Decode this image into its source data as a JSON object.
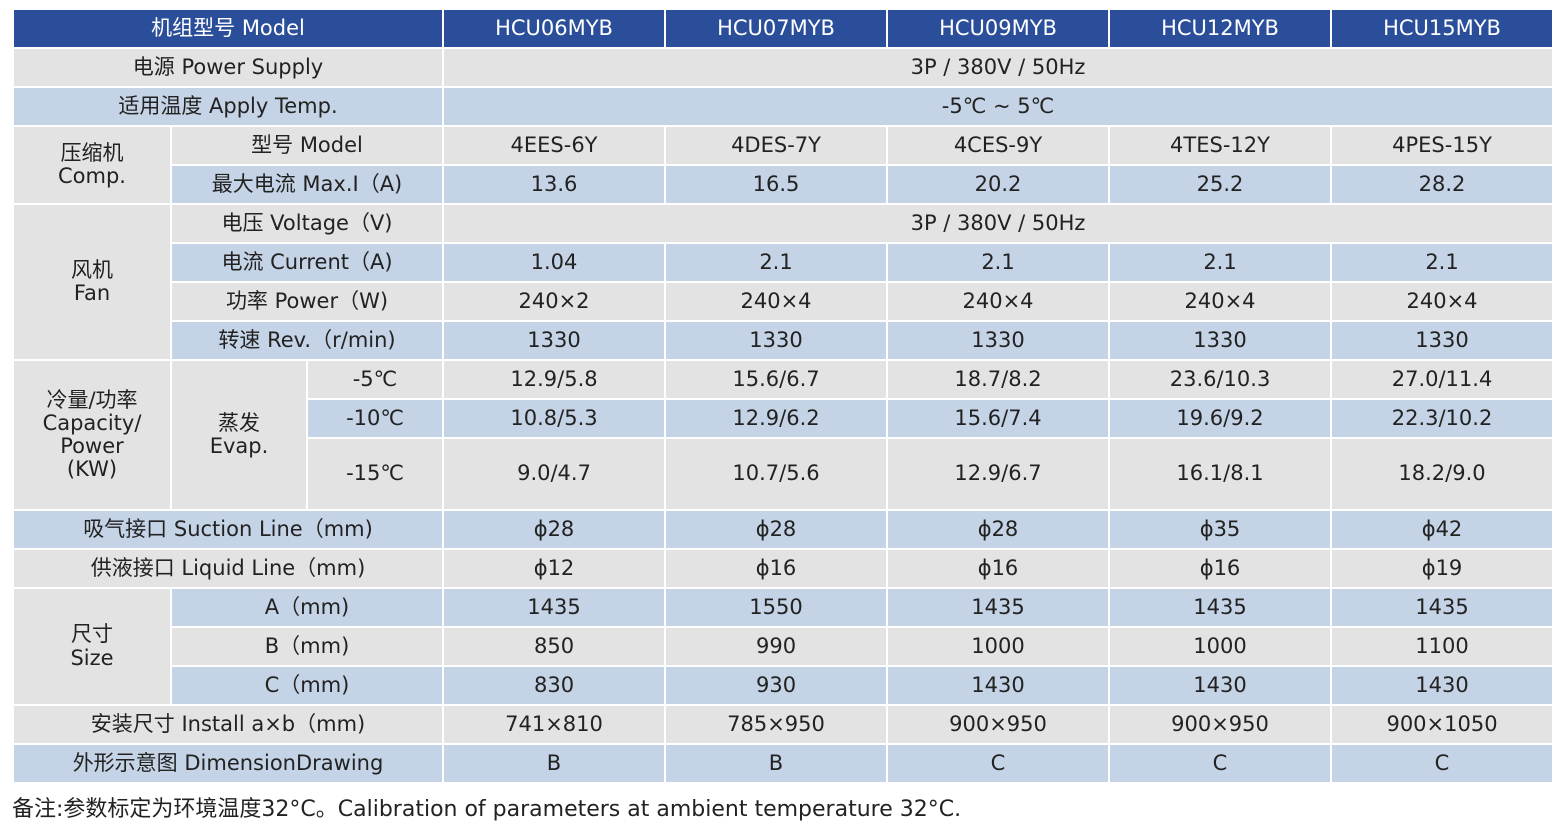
{
  "header": {
    "label": "机组型号 Model",
    "models": [
      "HCU06MYB",
      "HCU07MYB",
      "HCU09MYB",
      "HCU12MYB",
      "HCU15MYB"
    ]
  },
  "power_supply": {
    "label": "电源 Power Supply",
    "value": "3P / 380V / 50Hz"
  },
  "apply_temp": {
    "label": "适用温度 Apply Temp.",
    "value": "-5℃ ~ 5℃"
  },
  "comp": {
    "group_label": [
      "压缩机",
      "Comp."
    ],
    "model": {
      "label": "型号 Model",
      "values": [
        "4EES-6Y",
        "4DES-7Y",
        "4CES-9Y",
        "4TES-12Y",
        "4PES-15Y"
      ]
    },
    "max_i": {
      "label": "最大电流 Max.I（A)",
      "values": [
        "13.6",
        "16.5",
        "20.2",
        "25.2",
        "28.2"
      ]
    }
  },
  "fan": {
    "group_label": [
      "风机",
      "Fan"
    ],
    "voltage": {
      "label": "电压 Voltage（V)",
      "value": "3P / 380V / 50Hz"
    },
    "current": {
      "label": "电流 Current（A)",
      "values": [
        "1.04",
        "2.1",
        "2.1",
        "2.1",
        "2.1"
      ]
    },
    "power": {
      "label": "功率 Power（W)",
      "values": [
        "240×2",
        "240×4",
        "240×4",
        "240×4",
        "240×4"
      ]
    },
    "rev": {
      "label": "转速 Rev.（r/min)",
      "values": [
        "1330",
        "1330",
        "1330",
        "1330",
        "1330"
      ]
    }
  },
  "capacity": {
    "group_label": [
      "冷量/功率",
      "Capacity/",
      "Power",
      "(KW)"
    ],
    "evap_label": [
      "蒸发",
      "Evap."
    ],
    "rows": [
      {
        "temp": "-5℃",
        "values": [
          "12.9/5.8",
          "15.6/6.7",
          "18.7/8.2",
          "23.6/10.3",
          "27.0/11.4"
        ]
      },
      {
        "temp": "-10℃",
        "values": [
          "10.8/5.3",
          "12.9/6.2",
          "15.6/7.4",
          "19.6/9.2",
          "22.3/10.2"
        ]
      },
      {
        "temp": "-15℃",
        "values": [
          "9.0/4.7",
          "10.7/5.6",
          "12.9/6.7",
          "16.1/8.1",
          "18.2/9.0"
        ]
      }
    ]
  },
  "suction": {
    "label": "吸气接口 Suction Line（mm)",
    "values": [
      "ϕ28",
      "ϕ28",
      "ϕ28",
      "ϕ35",
      "ϕ42"
    ]
  },
  "liquid": {
    "label": "供液接口 Liquid Line（mm)",
    "values": [
      "ϕ12",
      "ϕ16",
      "ϕ16",
      "ϕ16",
      "ϕ19"
    ]
  },
  "size": {
    "group_label": [
      "尺寸",
      "Size"
    ],
    "a": {
      "label": "A（mm)",
      "values": [
        "1435",
        "1550",
        "1435",
        "1435",
        "1435"
      ]
    },
    "b": {
      "label": "B（mm)",
      "values": [
        "850",
        "990",
        "1000",
        "1000",
        "1100"
      ]
    },
    "c": {
      "label": "C（mm)",
      "values": [
        "830",
        "930",
        "1430",
        "1430",
        "1430"
      ]
    }
  },
  "install": {
    "label": "安装尺寸 Install a×b（mm)",
    "values": [
      "741×810",
      "785×950",
      "900×950",
      "900×950",
      "900×1050"
    ]
  },
  "drawing": {
    "label": "外形示意图 DimensionDrawing",
    "values": [
      "B",
      "B",
      "C",
      "C",
      "C"
    ]
  },
  "note": "备注:参数标定为环境温度32°C。Calibration of parameters at ambient temperature 32°C."
}
